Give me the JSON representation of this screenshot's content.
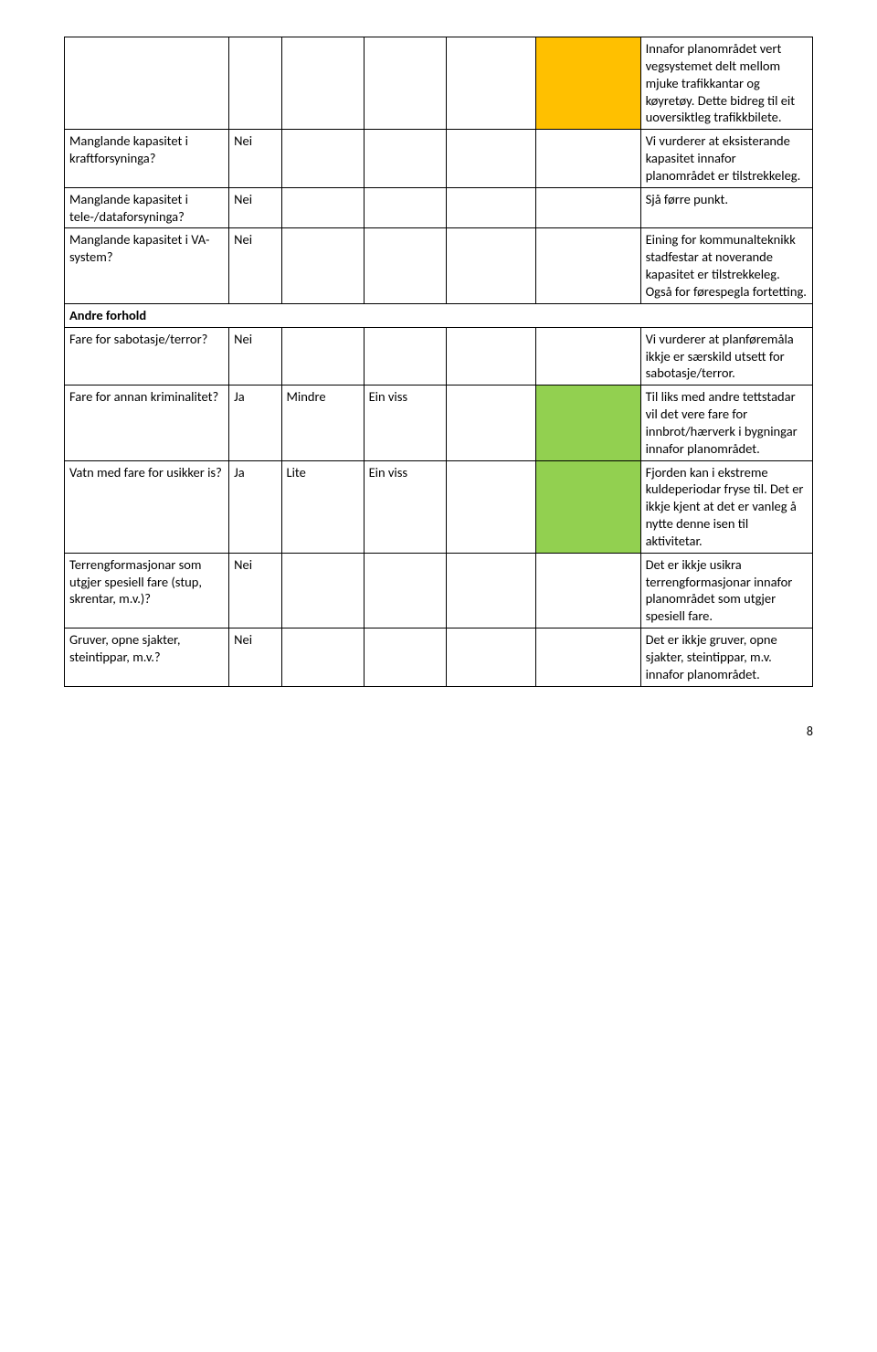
{
  "colors": {
    "orange": "#ffc000",
    "green": "#92d050",
    "border": "#000000",
    "bg": "#ffffff",
    "text": "#000000"
  },
  "rows": [
    {
      "col1": "",
      "col2": "",
      "col3": "",
      "col4": "",
      "col5": "",
      "col6_class": "orange",
      "col7": "Innafor planområdet vert vegsystemet delt mellom mjuke trafikkantar og køyretøy. Dette bidreg til eit uoversiktleg trafikkbilete."
    },
    {
      "col1": "Manglande kapasitet i kraftforsyninga?",
      "col2": "Nei",
      "col3": "",
      "col4": "",
      "col5": "",
      "col6_class": "",
      "col7": "Vi vurderer at eksisterande kapasitet innafor planområdet er tilstrekkeleg."
    },
    {
      "col1": "Manglande kapasitet i tele-/dataforsyninga?",
      "col2": "Nei",
      "col3": "",
      "col4": "",
      "col5": "",
      "col6_class": "",
      "col7": "Sjå førre punkt."
    },
    {
      "col1": "Manglande kapasitet i VA-system?",
      "col2": "Nei",
      "col3": "",
      "col4": "",
      "col5": "",
      "col6_class": "",
      "col7": "Eining for kommunalteknikk stadfestar at noverande kapasitet er tilstrekkeleg. Også for førespegla fortetting."
    },
    {
      "section": "Andre forhold"
    },
    {
      "col1": "Fare for sabotasje/terror?",
      "col2": "Nei",
      "col3": "",
      "col4": "",
      "col5": "",
      "col6_class": "",
      "col7": "Vi vurderer at planføremåla ikkje er særskild utsett for sabotasje/terror."
    },
    {
      "col1": "Fare for annan kriminalitet?",
      "col2": "Ja",
      "col3": "Mindre",
      "col4": "Ein viss",
      "col5": "",
      "col6_class": "green",
      "col7": "Til liks med andre tettstadar vil det vere fare for innbrot/hærverk i bygningar innafor planområdet."
    },
    {
      "col1": "Vatn med fare for usikker is?",
      "col2": "Ja",
      "col3": "Lite",
      "col4": "Ein viss",
      "col5": "",
      "col6_class": "green",
      "col7": "Fjorden kan i ekstreme kuldeperiodar fryse til. Det er ikkje kjent at det er vanleg å nytte denne isen til aktivitetar."
    },
    {
      "col1": "Terrengformasjonar som utgjer spesiell fare (stup, skrentar, m.v.)?",
      "col2": "Nei",
      "col3": "",
      "col4": "",
      "col5": "",
      "col6_class": "",
      "col7": "Det er ikkje usikra terrengformasjonar innafor planområdet som utgjer spesiell fare."
    },
    {
      "col1": "Gruver, opne sjakter, steintippar, m.v.?",
      "col2": "Nei",
      "col3": "",
      "col4": "",
      "col5": "",
      "col6_class": "",
      "col7": "Det er ikkje gruver, opne sjakter, steintippar, m.v. innafor planområdet."
    }
  ],
  "page_number": "8"
}
